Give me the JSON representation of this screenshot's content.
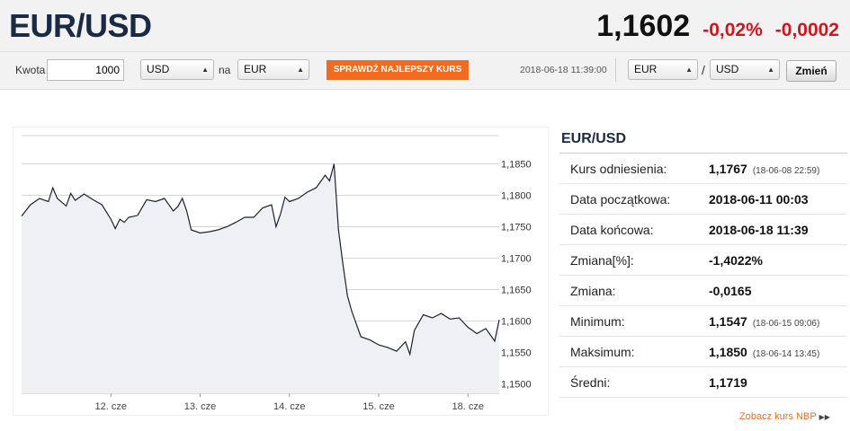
{
  "header": {
    "pair": "EUR/USD",
    "rate": "1,1602",
    "change_pct": "-0,02%",
    "change_abs": "-0,0002"
  },
  "converter": {
    "amount_label": "Kwota",
    "amount_value": "1000",
    "from_currency": "USD",
    "to_label": "na",
    "to_currency": "EUR",
    "best_rate_button": "SPRAWDŹ NAJLEPSZY KURS",
    "timestamp": "2018-06-18 11:39:00",
    "pair_base": "EUR",
    "pair_sep": "/",
    "pair_quote": "USD",
    "change_button": "Zmień"
  },
  "stats": {
    "title": "EUR/USD",
    "rows": [
      {
        "label": "Kurs odniesienia:",
        "value": "1,1767",
        "sub": "(18-06-08 22:59)"
      },
      {
        "label": "Data początkowa:",
        "value": "2018-06-11 00:03",
        "sub": ""
      },
      {
        "label": "Data końcowa:",
        "value": "2018-06-18 11:39",
        "sub": ""
      },
      {
        "label": "Zmiana[%]:",
        "value": "-1,4022%",
        "sub": ""
      },
      {
        "label": "Zmiana:",
        "value": "-0,0165",
        "sub": ""
      },
      {
        "label": "Minimum:",
        "value": "1,1547",
        "sub": "(18-06-15 09:06)"
      },
      {
        "label": "Maksimum:",
        "value": "1,1850",
        "sub": "(18-06-14 13:45)"
      },
      {
        "label": "Średni:",
        "value": "1,1719",
        "sub": ""
      }
    ],
    "nbp_link": "Zobacz kurs NBP",
    "nbp_icon": "double-triangle-right-icon"
  },
  "chart_data": {
    "type": "line",
    "ylim": [
      1.1485,
      1.1895
    ],
    "y_ticks": [
      1.15,
      1.155,
      1.16,
      1.165,
      1.17,
      1.175,
      1.18,
      1.185
    ],
    "y_tick_labels": [
      "1,1500",
      "1,1550",
      "1,1600",
      "1,1650",
      "1,1700",
      "1,1750",
      "1,1800",
      "1,1850"
    ],
    "x_range": [
      0,
      5.35
    ],
    "x_ticks": [
      1,
      2,
      3,
      4,
      5
    ],
    "x_tick_labels": [
      "12. cze",
      "13. cze",
      "14. cze",
      "15. cze",
      "18. cze"
    ],
    "colors": {
      "line": "#1b2230",
      "fill": "#eef0f3",
      "grid": "#d6d6d6"
    },
    "series": [
      {
        "x": [
          0,
          0.1,
          0.2,
          0.3,
          0.35,
          0.4,
          0.5,
          0.55,
          0.6,
          0.7,
          0.8,
          0.9,
          1.0,
          1.05,
          1.1,
          1.15,
          1.2,
          1.3,
          1.4,
          1.5,
          1.6,
          1.7,
          1.75,
          1.8,
          1.85,
          1.9,
          2.0,
          2.1,
          2.2,
          2.3,
          2.4,
          2.5,
          2.6,
          2.7,
          2.8,
          2.85,
          2.9,
          2.95,
          3.0,
          3.1,
          3.2,
          3.3,
          3.4,
          3.45,
          3.5,
          3.55,
          3.6,
          3.65,
          3.7,
          3.8,
          3.9,
          4.0,
          4.1,
          4.2,
          4.3,
          4.35,
          4.4,
          4.5,
          4.6,
          4.7,
          4.8,
          4.9,
          5.0,
          5.1,
          5.2,
          5.3,
          5.35
        ],
        "y": [
          1.1767,
          1.1785,
          1.1795,
          1.179,
          1.1812,
          1.1795,
          1.1783,
          1.1803,
          1.1792,
          1.1802,
          1.1793,
          1.1785,
          1.1762,
          1.1747,
          1.1762,
          1.1757,
          1.1765,
          1.1768,
          1.1793,
          1.179,
          1.1795,
          1.1775,
          1.1782,
          1.1795,
          1.1775,
          1.1745,
          1.174,
          1.1742,
          1.1745,
          1.175,
          1.1757,
          1.1765,
          1.1765,
          1.178,
          1.1785,
          1.175,
          1.177,
          1.1797,
          1.179,
          1.1795,
          1.1805,
          1.1812,
          1.1832,
          1.1823,
          1.185,
          1.1745,
          1.169,
          1.164,
          1.1615,
          1.1575,
          1.157,
          1.1562,
          1.1558,
          1.1552,
          1.1567,
          1.1547,
          1.1585,
          1.161,
          1.1605,
          1.1612,
          1.1603,
          1.1605,
          1.159,
          1.158,
          1.1588,
          1.1568,
          1.1602
        ]
      }
    ]
  }
}
